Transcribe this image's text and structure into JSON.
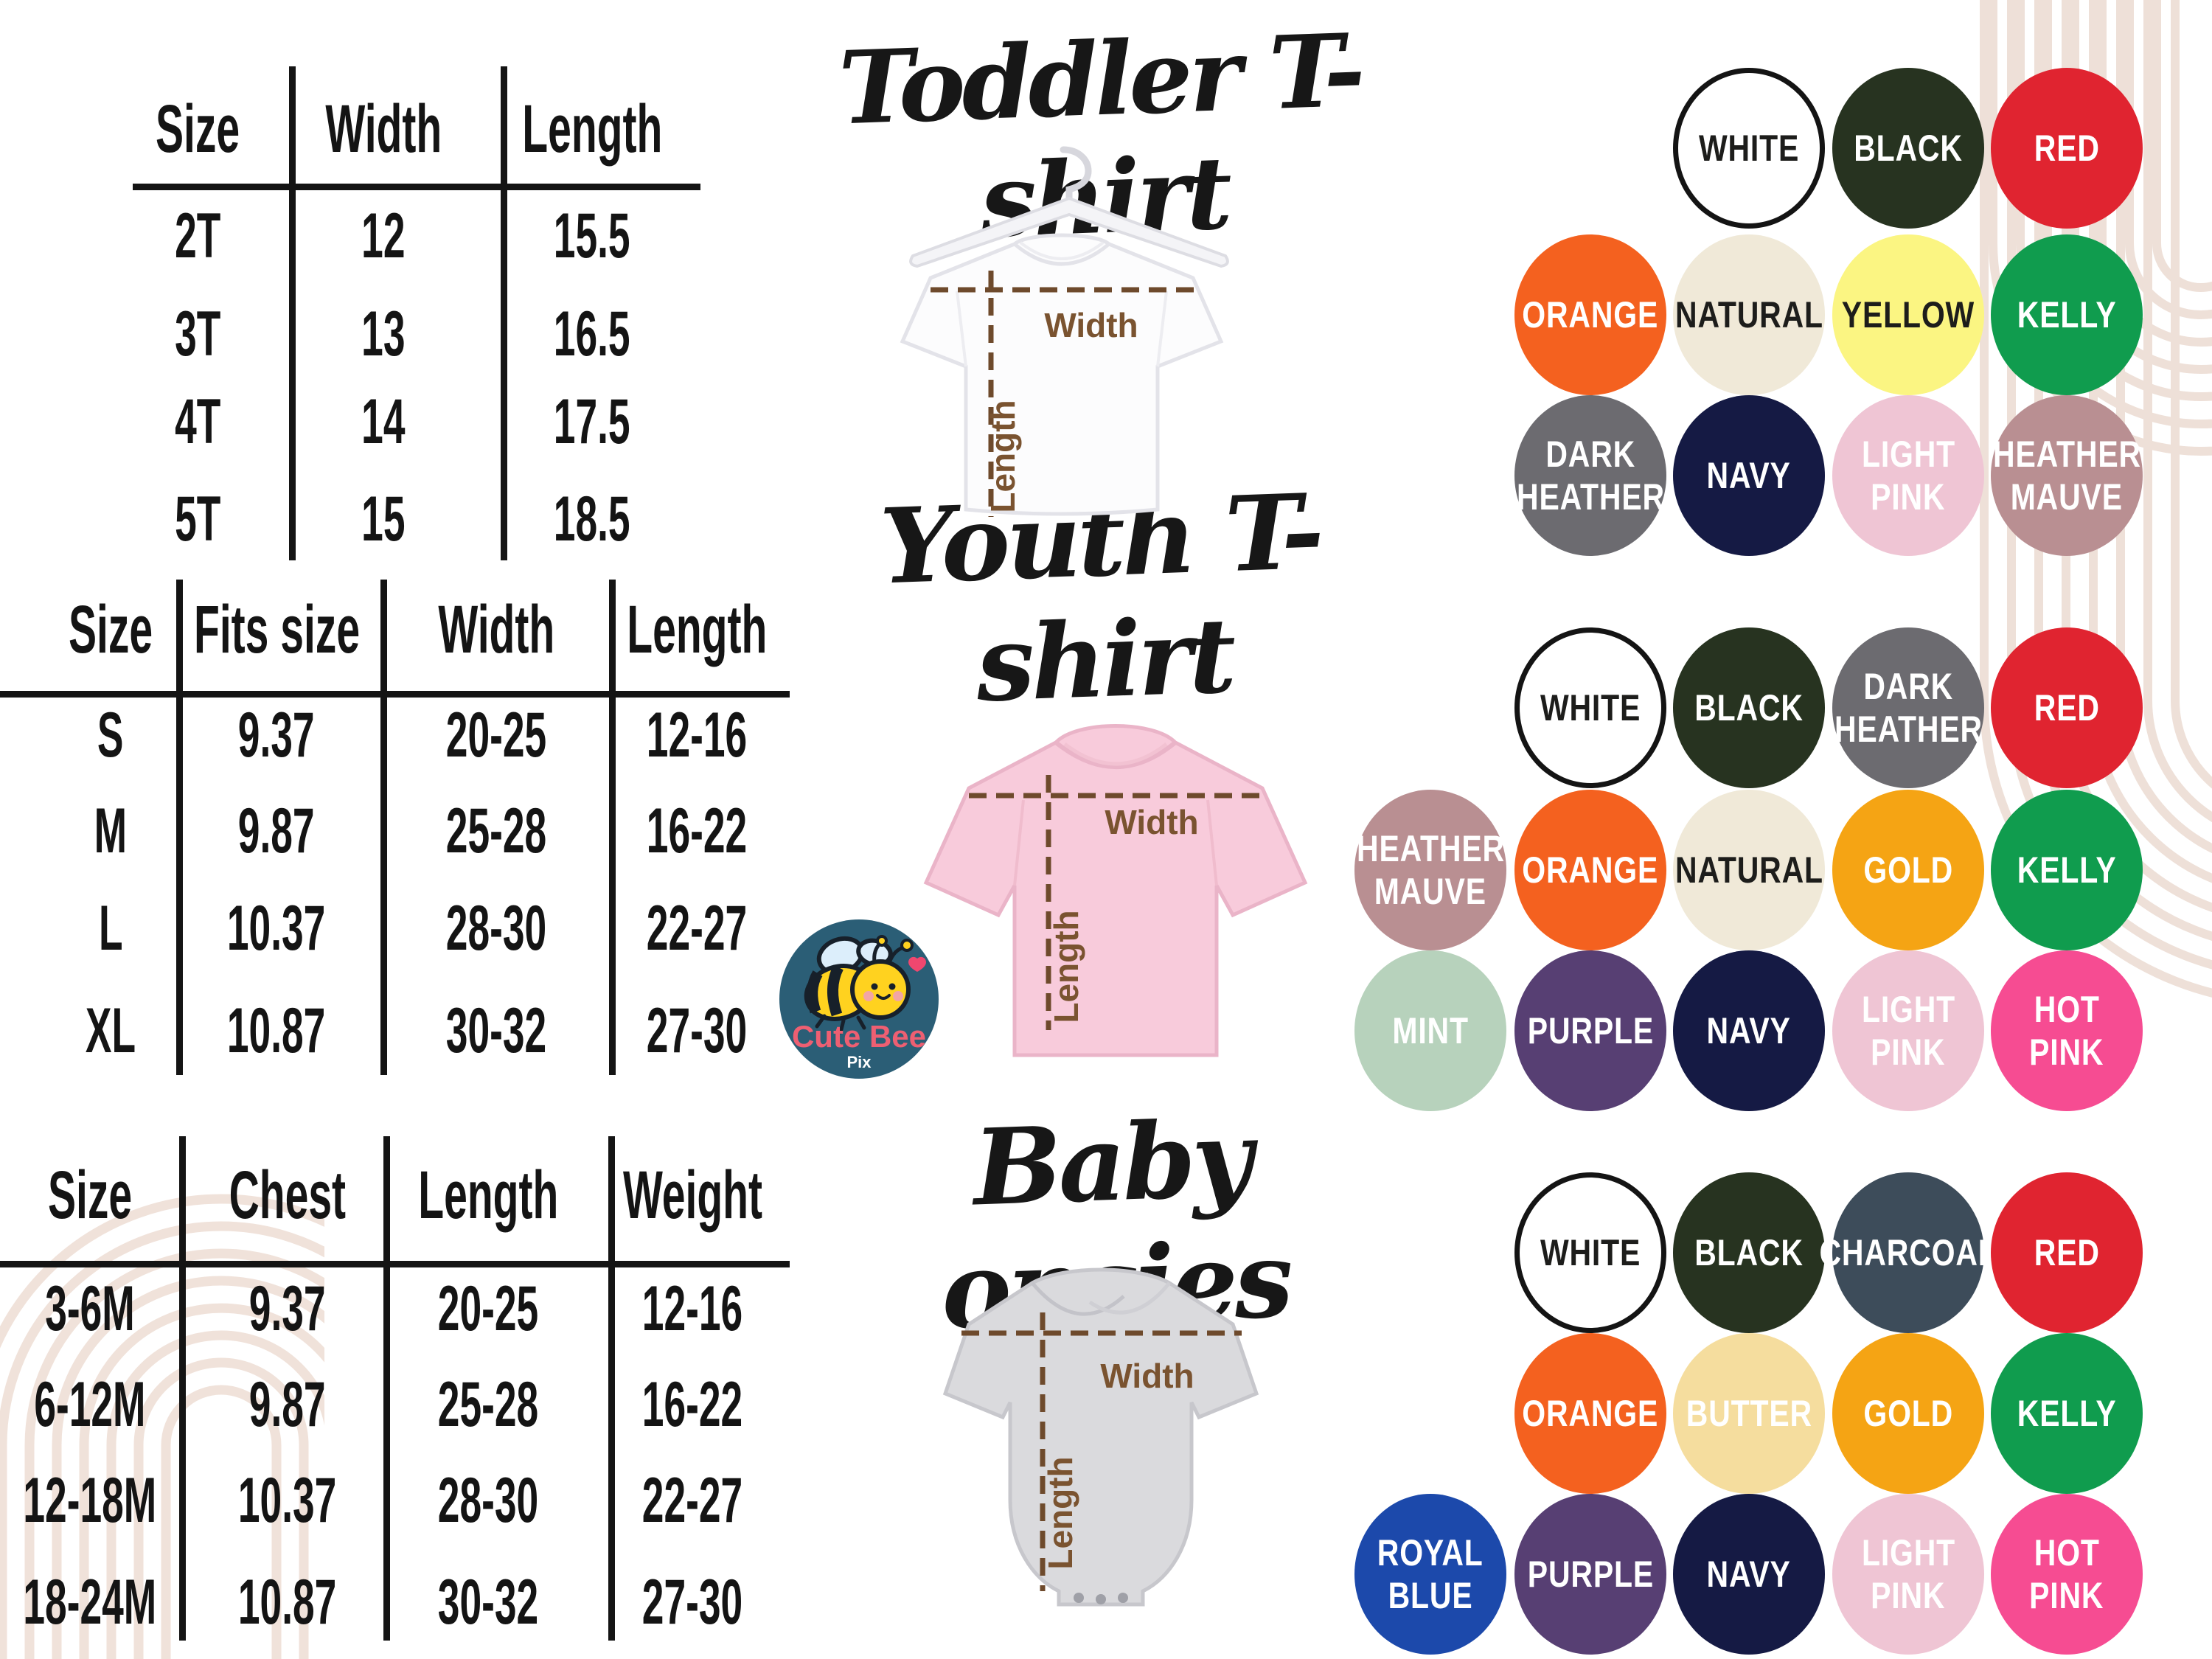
{
  "page": {
    "background": "#ffffff",
    "line_color": "#141414",
    "dimension_color": "#7a5330"
  },
  "sections": {
    "toddler": {
      "title": "Toddler T-shirt"
    },
    "youth": {
      "title": "Youth T-shirt"
    },
    "baby": {
      "title": "Baby onsies"
    }
  },
  "measure_labels": {
    "width": "Width",
    "length": "Length"
  },
  "logo": {
    "name": "Cute Bee",
    "sub": "Pix"
  },
  "tables": [
    {
      "id": "toddler",
      "headers": [
        "Size",
        "Width",
        "Length"
      ],
      "rows": [
        [
          "2T",
          "12",
          "15.5"
        ],
        [
          "3T",
          "13",
          "16.5"
        ],
        [
          "4T",
          "14",
          "17.5"
        ],
        [
          "5T",
          "15",
          "18.5"
        ]
      ]
    },
    {
      "id": "youth",
      "headers": [
        "Size",
        "Fits size",
        "Width",
        "Length"
      ],
      "rows": [
        [
          "S",
          "9.37",
          "20-25",
          "12-16"
        ],
        [
          "M",
          "9.87",
          "25-28",
          "16-22"
        ],
        [
          "L",
          "10.37",
          "28-30",
          "22-27"
        ],
        [
          "XL",
          "10.87",
          "30-32",
          "27-30"
        ]
      ]
    },
    {
      "id": "baby",
      "headers": [
        "Size",
        "Chest",
        "Length",
        "Weight"
      ],
      "rows": [
        [
          "3-6M",
          "9.37",
          "20-25",
          "12-16"
        ],
        [
          "6-12M",
          "9.87",
          "25-28",
          "16-22"
        ],
        [
          "12-18M",
          "10.37",
          "28-30",
          "22-27"
        ],
        [
          "18-24M",
          "10.87",
          "30-32",
          "27-30"
        ]
      ]
    }
  ],
  "palette": {
    "white": "#ffffff",
    "black": "#273320",
    "red": "#e02430",
    "orange": "#f4611f",
    "natural": "#f0e9d8",
    "yellow": "#fbf582",
    "kelly": "#109c4e",
    "dark_heather": "#6c6b70",
    "navy": "#151a44",
    "light_pink": "#efc5d4",
    "heather_mauve": "#b98f92",
    "gold": "#f5a414",
    "mint": "#b7d2bc",
    "purple": "#573f73",
    "hot_pink": "#f64c92",
    "charcoal": "#3d4c5a",
    "butter": "#f5dd9e",
    "royal_blue": "#1c49ab"
  },
  "swatch_grids": [
    {
      "id": "toddler",
      "swatches": [
        {
          "row": 0,
          "col": 2,
          "color": "white",
          "lines": [
            "WHITE"
          ],
          "text": "dark",
          "outlined": true
        },
        {
          "row": 0,
          "col": 3,
          "color": "black",
          "lines": [
            "BLACK"
          ]
        },
        {
          "row": 0,
          "col": 4,
          "color": "red",
          "lines": [
            "RED"
          ]
        },
        {
          "row": 1,
          "col": 1,
          "color": "orange",
          "lines": [
            "ORANGE"
          ]
        },
        {
          "row": 1,
          "col": 2,
          "color": "natural",
          "lines": [
            "NATURAL"
          ],
          "text": "dark"
        },
        {
          "row": 1,
          "col": 3,
          "color": "yellow",
          "lines": [
            "YELLOW"
          ],
          "text": "dark"
        },
        {
          "row": 1,
          "col": 4,
          "color": "kelly",
          "lines": [
            "KELLY"
          ]
        },
        {
          "row": 2,
          "col": 1,
          "color": "dark_heather",
          "lines": [
            "DARK",
            "HEATHER"
          ]
        },
        {
          "row": 2,
          "col": 2,
          "color": "navy",
          "lines": [
            "NAVY"
          ]
        },
        {
          "row": 2,
          "col": 3,
          "color": "light_pink",
          "lines": [
            "LIGHT",
            "PINK"
          ]
        },
        {
          "row": 2,
          "col": 4,
          "color": "heather_mauve",
          "lines": [
            "HEATHER",
            "MAUVE"
          ]
        }
      ]
    },
    {
      "id": "youth",
      "swatches": [
        {
          "row": 0,
          "col": 1,
          "color": "white",
          "lines": [
            "WHITE"
          ],
          "text": "dark",
          "outlined": true
        },
        {
          "row": 0,
          "col": 2,
          "color": "black",
          "lines": [
            "BLACK"
          ]
        },
        {
          "row": 0,
          "col": 3,
          "color": "dark_heather",
          "lines": [
            "DARK",
            "HEATHER"
          ]
        },
        {
          "row": 0,
          "col": 4,
          "color": "red",
          "lines": [
            "RED"
          ]
        },
        {
          "row": 1,
          "col": 0,
          "color": "heather_mauve",
          "lines": [
            "HEATHER",
            "MAUVE"
          ]
        },
        {
          "row": 1,
          "col": 1,
          "color": "orange",
          "lines": [
            "ORANGE"
          ]
        },
        {
          "row": 1,
          "col": 2,
          "color": "natural",
          "lines": [
            "NATURAL"
          ],
          "text": "dark"
        },
        {
          "row": 1,
          "col": 3,
          "color": "gold",
          "lines": [
            "GOLD"
          ]
        },
        {
          "row": 1,
          "col": 4,
          "color": "kelly",
          "lines": [
            "KELLY"
          ]
        },
        {
          "row": 2,
          "col": 0,
          "color": "mint",
          "lines": [
            "MINT"
          ]
        },
        {
          "row": 2,
          "col": 1,
          "color": "purple",
          "lines": [
            "PURPLE"
          ]
        },
        {
          "row": 2,
          "col": 2,
          "color": "navy",
          "lines": [
            "NAVY"
          ]
        },
        {
          "row": 2,
          "col": 3,
          "color": "light_pink",
          "lines": [
            "LIGHT",
            "PINK"
          ]
        },
        {
          "row": 2,
          "col": 4,
          "color": "hot_pink",
          "lines": [
            "HOT",
            "PINK"
          ]
        }
      ]
    },
    {
      "id": "baby",
      "swatches": [
        {
          "row": 0,
          "col": 1,
          "color": "white",
          "lines": [
            "WHITE"
          ],
          "text": "dark",
          "outlined": true
        },
        {
          "row": 0,
          "col": 2,
          "color": "black",
          "lines": [
            "BLACK"
          ]
        },
        {
          "row": 0,
          "col": 3,
          "color": "charcoal",
          "lines": [
            "CHARCOAL"
          ]
        },
        {
          "row": 0,
          "col": 4,
          "color": "red",
          "lines": [
            "RED"
          ]
        },
        {
          "row": 1,
          "col": 1,
          "color": "orange",
          "lines": [
            "ORANGE"
          ]
        },
        {
          "row": 1,
          "col": 2,
          "color": "butter",
          "lines": [
            "BUTTER"
          ]
        },
        {
          "row": 1,
          "col": 3,
          "color": "gold",
          "lines": [
            "GOLD"
          ]
        },
        {
          "row": 1,
          "col": 4,
          "color": "kelly",
          "lines": [
            "KELLY"
          ]
        },
        {
          "row": 2,
          "col": 0,
          "color": "royal_blue",
          "lines": [
            "ROYAL",
            "BLUE"
          ]
        },
        {
          "row": 2,
          "col": 1,
          "color": "purple",
          "lines": [
            "PURPLE"
          ]
        },
        {
          "row": 2,
          "col": 2,
          "color": "navy",
          "lines": [
            "NAVY"
          ]
        },
        {
          "row": 2,
          "col": 3,
          "color": "light_pink",
          "lines": [
            "LIGHT",
            "PINK"
          ]
        },
        {
          "row": 2,
          "col": 4,
          "color": "hot_pink",
          "lines": [
            "HOT",
            "PINK"
          ]
        }
      ]
    }
  ]
}
